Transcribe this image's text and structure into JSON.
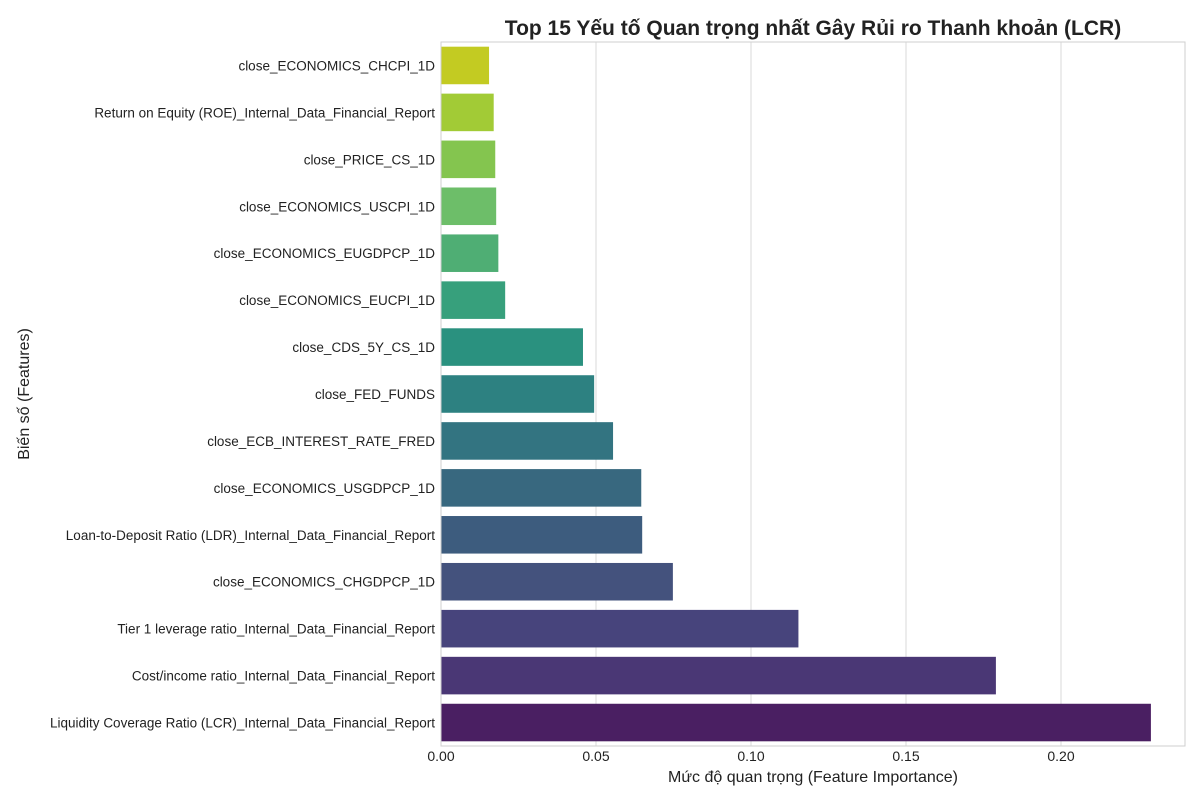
{
  "chart_data": {
    "type": "bar",
    "orientation": "horizontal",
    "title": "Top 15 Yếu tố Quan trọng nhất Gây Rủi ro Thanh khoản (LCR)",
    "xlabel": "Mức độ quan trọng (Feature Importance)",
    "ylabel": "Biến số (Features)",
    "xlim": [
      0,
      0.24
    ],
    "xticks": [
      0.0,
      0.05,
      0.1,
      0.15,
      0.2
    ],
    "xtick_labels": [
      "0.00",
      "0.05",
      "0.10",
      "0.15",
      "0.20"
    ],
    "grid": "vertical",
    "categories": [
      "close_ECONOMICS_CHCPI_1D",
      "Return on Equity (ROE)_Internal_Data_Financial_Report",
      "close_PRICE_CS_1D",
      "close_ECONOMICS_USCPI_1D",
      "close_ECONOMICS_EUGDPCP_1D",
      "close_ECONOMICS_EUCPI_1D",
      "close_CDS_5Y_CS_1D",
      "close_FED_FUNDS",
      "close_ECB_INTEREST_RATE_FRED",
      "close_ECONOMICS_USGDPCP_1D",
      "Loan-to-Deposit Ratio (LDR)_Internal_Data_Financial_Report",
      "close_ECONOMICS_CHGDPCP_1D",
      "Tier 1 leverage ratio_Internal_Data_Financial_Report",
      "Cost/income ratio_Internal_Data_Financial_Report",
      "Liquidity Coverage Ratio (LCR)_Internal_Data_Financial_Report"
    ],
    "values": [
      0.0155,
      0.017,
      0.0175,
      0.0178,
      0.0185,
      0.0207,
      0.0458,
      0.0494,
      0.0555,
      0.0646,
      0.0649,
      0.0748,
      0.1153,
      0.179,
      0.229
    ],
    "colors": [
      "#c3cb22",
      "#a2cb36",
      "#84c54f",
      "#6dbe69",
      "#4fae74",
      "#37a07c",
      "#2a917f",
      "#2d8181",
      "#337481",
      "#38687f",
      "#3d5c7e",
      "#44527d",
      "#47447c",
      "#4a3775",
      "#4a1f62"
    ]
  }
}
